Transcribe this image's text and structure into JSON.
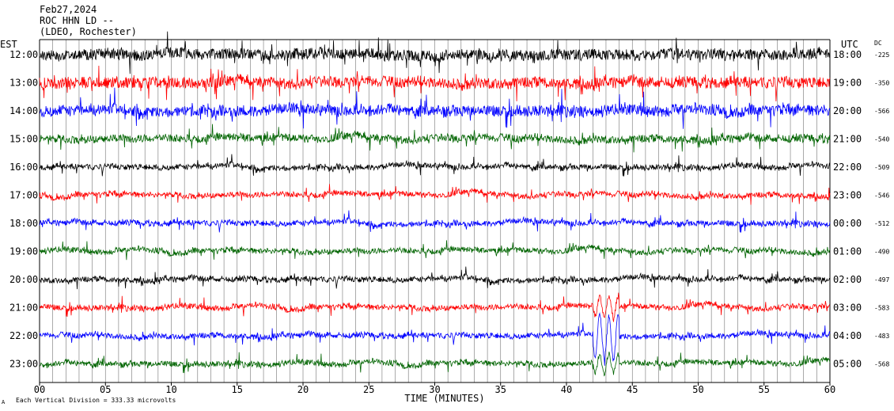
{
  "header": {
    "date": "Feb27,2024",
    "station": "ROC HHN LD --",
    "network": "(LDEO, Rochester)"
  },
  "axes": {
    "left_title": "EST",
    "right_title": "UTC",
    "dc_title": "DC",
    "x_title": "TIME (MINUTES)",
    "x_ticks": [
      "00",
      "05",
      "10",
      "15",
      "20",
      "25",
      "30",
      "35",
      "40",
      "45",
      "50",
      "55",
      "60"
    ],
    "footer_note": "Each Vertical Division =  333.33 microvolts",
    "footer_mark": "A"
  },
  "chart_data": {
    "type": "line",
    "title": "",
    "xlabel": "TIME (MINUTES)",
    "xlim": [
      0,
      60
    ],
    "grid": true,
    "rows": [
      {
        "est": "12:00",
        "utc": "18:00",
        "dc": "-225",
        "color": "#000000",
        "amplitude": "very high"
      },
      {
        "est": "13:00",
        "utc": "19:00",
        "dc": "-350",
        "color": "#ff0000",
        "amplitude": "very high"
      },
      {
        "est": "14:00",
        "utc": "20:00",
        "dc": "-566",
        "color": "#0000ff",
        "amplitude": "very high"
      },
      {
        "est": "15:00",
        "utc": "21:00",
        "dc": "-540",
        "color": "#006400",
        "amplitude": "high"
      },
      {
        "est": "16:00",
        "utc": "22:00",
        "dc": "-509",
        "color": "#000000",
        "amplitude": "medium"
      },
      {
        "est": "17:00",
        "utc": "23:00",
        "dc": "-546",
        "color": "#ff0000",
        "amplitude": "medium"
      },
      {
        "est": "18:00",
        "utc": "00:00",
        "dc": "-512",
        "color": "#0000ff",
        "amplitude": "medium"
      },
      {
        "est": "19:00",
        "utc": "01:00",
        "dc": "-490",
        "color": "#006400",
        "amplitude": "medium"
      },
      {
        "est": "20:00",
        "utc": "02:00",
        "dc": "-497",
        "color": "#000000",
        "amplitude": "medium"
      },
      {
        "est": "21:00",
        "utc": "03:00",
        "dc": "-583",
        "color": "#ff0000",
        "amplitude": "medium"
      },
      {
        "est": "22:00",
        "utc": "04:00",
        "dc": "-483",
        "color": "#0000ff",
        "amplitude": "medium"
      },
      {
        "est": "23:00",
        "utc": "05:00",
        "dc": "-568",
        "color": "#006400",
        "amplitude": "medium"
      }
    ]
  }
}
